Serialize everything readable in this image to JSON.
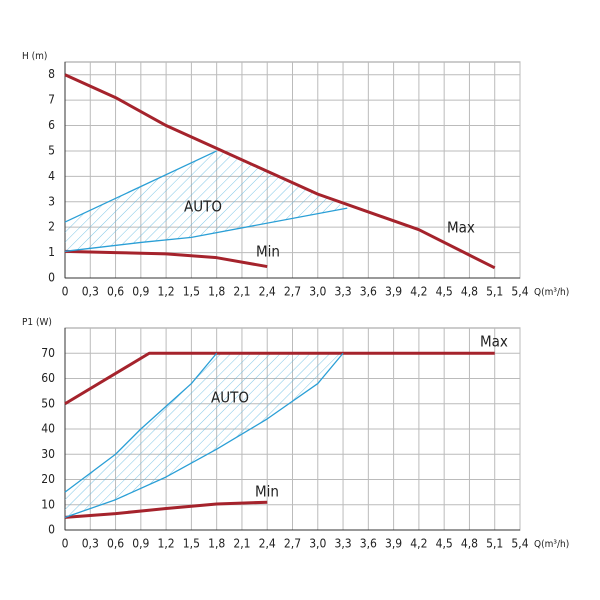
{
  "chart_data": [
    {
      "type": "line",
      "ylabel": "H (m)",
      "xlabel": "Q(m³/h)",
      "xlim": [
        0,
        5.4
      ],
      "ylim": [
        0,
        8.5
      ],
      "xticks": [
        0,
        {
          "value": 0.3,
          "label": "0,3"
        },
        {
          "value": 0.6,
          "label": "0,6"
        },
        {
          "value": 0.9,
          "label": "0,9"
        },
        {
          "value": 1.2,
          "label": "1,2"
        },
        {
          "value": 1.5,
          "label": "1,5"
        },
        {
          "value": 1.8,
          "label": "1,8"
        },
        {
          "value": 2.1,
          "label": "2,1"
        },
        {
          "value": 2.4,
          "label": "2,4"
        },
        {
          "value": 2.7,
          "label": "2,7"
        },
        {
          "value": 3.0,
          "label": "3,0"
        },
        {
          "value": 3.3,
          "label": "3,3"
        },
        {
          "value": 3.6,
          "label": "3,6"
        },
        {
          "value": 3.9,
          "label": "3,9"
        },
        {
          "value": 4.2,
          "label": "4,2"
        },
        {
          "value": 4.5,
          "label": "4,5"
        },
        {
          "value": 4.8,
          "label": "4,8"
        },
        {
          "value": 5.1,
          "label": "5,1"
        },
        {
          "value": 5.4,
          "label": "5,4"
        }
      ],
      "yticks": [
        0,
        1,
        2,
        3,
        4,
        5,
        6,
        7,
        8
      ],
      "grid": true,
      "region_label": "AUTO",
      "series": [
        {
          "name": "Max",
          "color": "#a5232c",
          "x": [
            0,
            0.6,
            1.2,
            1.8,
            2.4,
            3.0,
            3.6,
            4.2,
            4.8,
            5.1
          ],
          "values": [
            8,
            7.1,
            6,
            5.1,
            4.2,
            3.3,
            2.6,
            1.9,
            0.9,
            0.4
          ]
        },
        {
          "name": "Min",
          "color": "#a5232c",
          "x": [
            0,
            0.6,
            1.2,
            1.8,
            2.4
          ],
          "values": [
            1.05,
            1.0,
            0.95,
            0.8,
            0.45
          ]
        },
        {
          "color": "#2a9fd6",
          "x": [
            0,
            1.8
          ],
          "values": [
            2.2,
            5.0
          ]
        },
        {
          "color": "#2a9fd6",
          "x": [
            0,
            0.9,
            1.5,
            3.35
          ],
          "values": [
            1.05,
            1.4,
            1.6,
            2.75
          ]
        }
      ]
    },
    {
      "type": "line",
      "ylabel": "P1 (W)",
      "xlabel": "Q(m³/h)",
      "xlim": [
        0,
        5.4
      ],
      "ylim": [
        0,
        80
      ],
      "xticks": [
        0,
        {
          "value": 0.3,
          "label": "0,3"
        },
        {
          "value": 0.6,
          "label": "0,6"
        },
        {
          "value": 0.9,
          "label": "0,9"
        },
        {
          "value": 1.2,
          "label": "1,2"
        },
        {
          "value": 1.5,
          "label": "1,5"
        },
        {
          "value": 1.8,
          "label": "1,8"
        },
        {
          "value": 2.1,
          "label": "2,1"
        },
        {
          "value": 2.4,
          "label": "2,4"
        },
        {
          "value": 2.7,
          "label": "2,7"
        },
        {
          "value": 3.0,
          "label": "3,0"
        },
        {
          "value": 3.3,
          "label": "3,3"
        },
        {
          "value": 3.6,
          "label": "3,6"
        },
        {
          "value": 3.9,
          "label": "3,9"
        },
        {
          "value": 4.2,
          "label": "4,2"
        },
        {
          "value": 4.5,
          "label": "4,5"
        },
        {
          "value": 4.8,
          "label": "4,8"
        },
        {
          "value": 5.1,
          "label": "5,1"
        },
        {
          "value": 5.4,
          "label": "5,4"
        }
      ],
      "yticks": [
        0,
        10,
        20,
        30,
        40,
        50,
        60,
        70
      ],
      "grid": true,
      "region_label": "AUTO",
      "series": [
        {
          "name": "Max",
          "color": "#a5232c",
          "x": [
            0,
            1.0,
            5.1
          ],
          "values": [
            50,
            70,
            70
          ]
        },
        {
          "name": "Min",
          "color": "#a5232c",
          "x": [
            0,
            0.6,
            1.2,
            1.8,
            2.4
          ],
          "values": [
            5,
            6.5,
            8.5,
            10.3,
            11
          ]
        },
        {
          "color": "#2a9fd6",
          "x": [
            0,
            0.6,
            0.9,
            1.2,
            1.5,
            1.8
          ],
          "values": [
            15,
            30,
            40,
            49,
            58,
            70
          ]
        },
        {
          "color": "#2a9fd6",
          "x": [
            0,
            0.6,
            1.2,
            1.8,
            2.4,
            3.0,
            3.3
          ],
          "values": [
            5,
            12,
            21,
            32,
            44,
            58,
            70
          ]
        }
      ]
    }
  ]
}
